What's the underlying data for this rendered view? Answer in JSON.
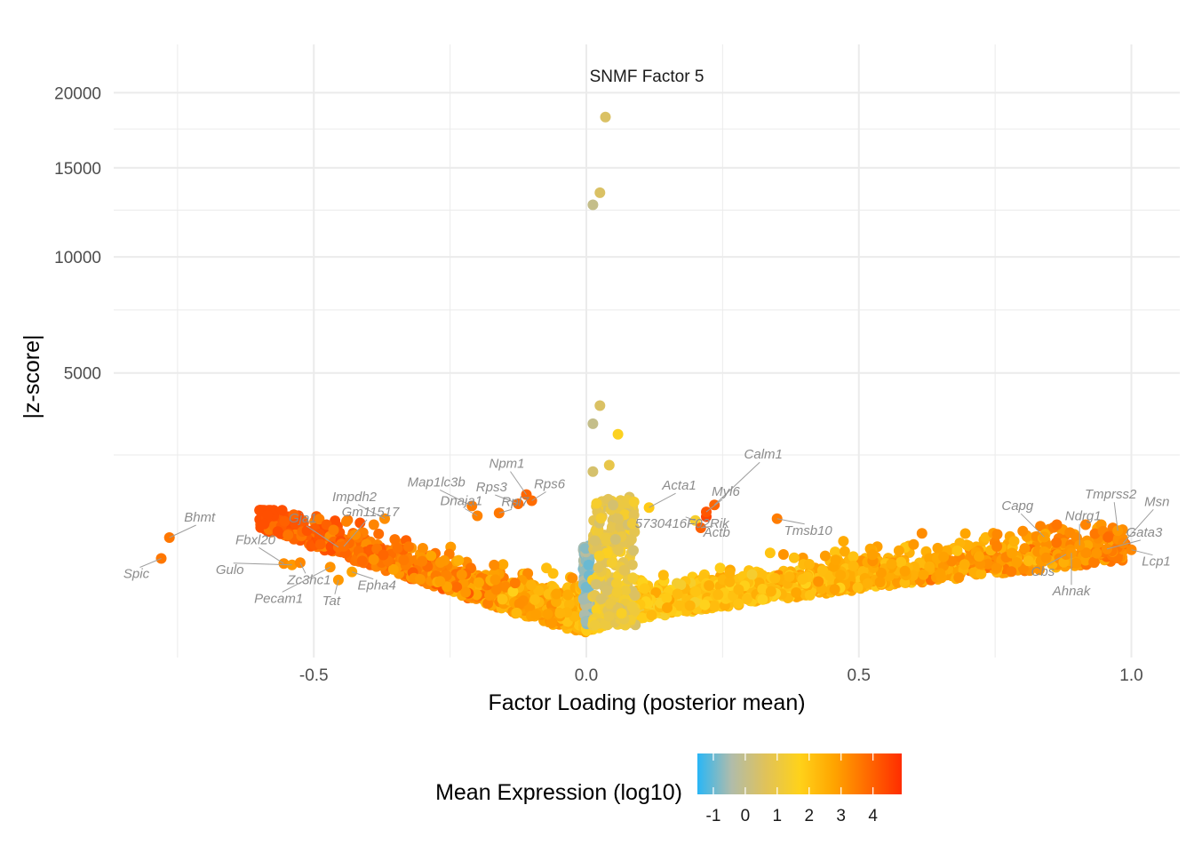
{
  "chart_data": {
    "type": "scatter",
    "title": "SNMF Factor 5",
    "xlabel": "Factor Loading (posterior mean)",
    "ylabel": "|z-score|",
    "x_ticks": [
      -0.5,
      0.0,
      0.5,
      1.0
    ],
    "x_tick_labels": [
      "-0.5",
      "0.0",
      "0.5",
      "1.0"
    ],
    "y_ticks": [
      5000,
      10000,
      15000,
      20000
    ],
    "y_tick_labels": [
      "5000",
      "10000",
      "15000",
      "20000"
    ],
    "y_scale": "sqrt",
    "xlim": [
      -0.86,
      1.09
    ],
    "ylim": [
      0,
      20000
    ],
    "grid": true,
    "legend": {
      "title": "Mean Expression (log10)",
      "placement": "bottom",
      "ticks": [
        "-1",
        "0",
        "1",
        "2",
        "3",
        "4"
      ],
      "range": [
        -1.5,
        4.9
      ],
      "colors": [
        "#29b6f6",
        "#b0bcaa",
        "#e0c25a",
        "#ffd21a",
        "#ffa500",
        "#ff6a00",
        "#ff2d00"
      ]
    },
    "highlight_points": [
      {
        "x": 0.035,
        "y": 18300,
        "expr": 0.5
      },
      {
        "x": 0.025,
        "y": 13500,
        "expr": 0.5
      },
      {
        "x": 0.012,
        "y": 12800,
        "expr": 0.0
      },
      {
        "x": 0.025,
        "y": 3900,
        "expr": 0.5
      },
      {
        "x": 0.012,
        "y": 3350,
        "expr": 0.0
      },
      {
        "x": 0.058,
        "y": 3050,
        "expr": 1.6
      },
      {
        "x": 0.042,
        "y": 2250,
        "expr": 0.9
      },
      {
        "x": 0.012,
        "y": 2100,
        "expr": 0.4
      },
      {
        "x": 0.22,
        "y": 1185,
        "expr": 4.5
      }
    ],
    "labeled_genes": [
      {
        "gene": "Npm1",
        "x": -0.11,
        "y": 1600,
        "expr": 3.9
      },
      {
        "gene": "Rps3",
        "x": -0.125,
        "y": 1420,
        "expr": 3.8
      },
      {
        "gene": "Rps6",
        "x": -0.1,
        "y": 1480,
        "expr": 3.8
      },
      {
        "gene": "Map1lc3b",
        "x": -0.21,
        "y": 1380,
        "expr": 3.5
      },
      {
        "gene": "Dnaja1",
        "x": -0.2,
        "y": 1200,
        "expr": 3.4
      },
      {
        "gene": "Rpl7",
        "x": -0.16,
        "y": 1250,
        "expr": 3.6
      },
      {
        "gene": "Impdh2",
        "x": -0.37,
        "y": 1150,
        "expr": 3.2
      },
      {
        "gene": "Calm1",
        "x": 0.235,
        "y": 1400,
        "expr": 3.9
      },
      {
        "gene": "Acta1",
        "x": 0.115,
        "y": 1350,
        "expr": 1.9
      },
      {
        "gene": "Myl6",
        "x": 0.22,
        "y": 1270,
        "expr": 4.2
      },
      {
        "gene": "5730416F02Rik",
        "x": 0.2,
        "y": 1120,
        "expr": 1.4
      },
      {
        "gene": "Actb",
        "x": 0.21,
        "y": 1000,
        "expr": 4.0
      },
      {
        "gene": "Tmsb10",
        "x": 0.35,
        "y": 1150,
        "expr": 3.5
      },
      {
        "gene": "Bhmt",
        "x": -0.765,
        "y": 850,
        "expr": 3.6
      },
      {
        "gene": "Spic",
        "x": -0.78,
        "y": 570,
        "expr": 3.6
      },
      {
        "gene": "Gja1",
        "x": -0.455,
        "y": 715,
        "expr": 3.7
      },
      {
        "gene": "Gm11517",
        "x": -0.445,
        "y": 725,
        "expr": 3.7
      },
      {
        "gene": "Fbxl20",
        "x": -0.555,
        "y": 510,
        "expr": 3.2
      },
      {
        "gene": "Gulo",
        "x": -0.54,
        "y": 495,
        "expr": 3.0
      },
      {
        "gene": "Zc3hc1",
        "x": -0.525,
        "y": 520,
        "expr": 3.3
      },
      {
        "gene": "Pecam1",
        "x": -0.47,
        "y": 470,
        "expr": 3.1
      },
      {
        "gene": "Tat",
        "x": -0.455,
        "y": 340,
        "expr": 3.0
      },
      {
        "gene": "Epha4",
        "x": -0.43,
        "y": 420,
        "expr": 2.8
      },
      {
        "gene": "Tmprss2",
        "x": 0.975,
        "y": 955,
        "expr": 3.0
      },
      {
        "gene": "Msn",
        "x": 0.985,
        "y": 770,
        "expr": 3.3
      },
      {
        "gene": "Gata3",
        "x": 0.955,
        "y": 690,
        "expr": 3.2
      },
      {
        "gene": "Lcp1",
        "x": 1.0,
        "y": 680,
        "expr": 3.3
      },
      {
        "gene": "Capg",
        "x": 0.84,
        "y": 860,
        "expr": 2.9
      },
      {
        "gene": "Ndrg1",
        "x": 0.905,
        "y": 740,
        "expr": 3.0
      },
      {
        "gene": "Cbs",
        "x": 0.88,
        "y": 620,
        "expr": 3.1
      },
      {
        "gene": "Ahnak",
        "x": 0.89,
        "y": 640,
        "expr": 3.0
      }
    ],
    "point_cloud": {
      "description_counts": {
        "n_points": 2600
      },
      "x_range": [
        -0.6,
        0.99
      ],
      "y_range": [
        0,
        900
      ]
    }
  }
}
